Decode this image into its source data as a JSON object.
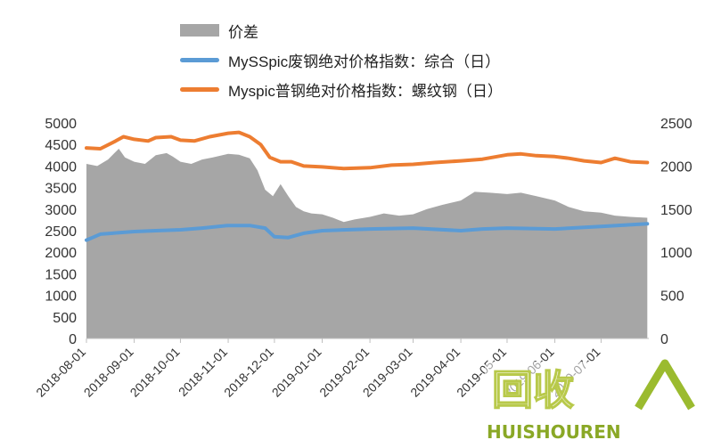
{
  "legend": {
    "area_label": "价差",
    "blue_label": "MySSpic废钢绝对价格指数：综合（日）",
    "orange_label": "Myspic普钢绝对价格指数：螺纹钢（日）"
  },
  "watermark": {
    "logo_text": "回收",
    "brand": "HUISHOUREN"
  },
  "chart_data": {
    "type": "line",
    "x_labels": [
      "2018-08-01",
      "2018-09-01",
      "2018-10-01",
      "2018-11-01",
      "2018-12-01",
      "2019-01-01",
      "2019-02-01",
      "2019-03-01",
      "2019-04-01",
      "2019-05-01",
      "2019-06-01",
      "2019-07-01"
    ],
    "left_axis": {
      "min": 0,
      "max": 5000,
      "ticks": [
        0,
        500,
        1000,
        1500,
        2000,
        2500,
        3000,
        3500,
        4000,
        4500,
        5000
      ]
    },
    "right_axis": {
      "min": 0,
      "max": 2500,
      "ticks": [
        0,
        500,
        1000,
        1500,
        2000,
        2500
      ]
    },
    "colors": {
      "area": "#a6a6a6",
      "blue": "#5b9bd5",
      "orange": "#ed7d31"
    },
    "series": [
      {
        "name": "价差",
        "type": "area",
        "axis": "left",
        "points": [
          [
            "2018-08-01",
            4050
          ],
          [
            "2018-08-08",
            4000
          ],
          [
            "2018-08-15",
            4150
          ],
          [
            "2018-08-22",
            4400
          ],
          [
            "2018-08-26",
            4200
          ],
          [
            "2018-09-01",
            4100
          ],
          [
            "2018-09-08",
            4050
          ],
          [
            "2018-09-15",
            4250
          ],
          [
            "2018-09-22",
            4300
          ],
          [
            "2018-09-26",
            4220
          ],
          [
            "2018-10-01",
            4100
          ],
          [
            "2018-10-08",
            4050
          ],
          [
            "2018-10-15",
            4150
          ],
          [
            "2018-10-22",
            4200
          ],
          [
            "2018-11-01",
            4280
          ],
          [
            "2018-11-08",
            4260
          ],
          [
            "2018-11-15",
            4180
          ],
          [
            "2018-11-20",
            3900
          ],
          [
            "2018-11-25",
            3450
          ],
          [
            "2018-11-30",
            3300
          ],
          [
            "2018-12-05",
            3580
          ],
          [
            "2018-12-10",
            3300
          ],
          [
            "2018-12-15",
            3050
          ],
          [
            "2018-12-20",
            2950
          ],
          [
            "2018-12-25",
            2900
          ],
          [
            "2019-01-01",
            2880
          ],
          [
            "2019-01-08",
            2800
          ],
          [
            "2019-01-15",
            2700
          ],
          [
            "2019-01-22",
            2760
          ],
          [
            "2019-02-01",
            2820
          ],
          [
            "2019-02-10",
            2900
          ],
          [
            "2019-02-20",
            2850
          ],
          [
            "2019-03-01",
            2880
          ],
          [
            "2019-03-10",
            3000
          ],
          [
            "2019-03-20",
            3100
          ],
          [
            "2019-04-01",
            3200
          ],
          [
            "2019-04-10",
            3400
          ],
          [
            "2019-04-20",
            3380
          ],
          [
            "2019-05-01",
            3350
          ],
          [
            "2019-05-10",
            3380
          ],
          [
            "2019-05-20",
            3300
          ],
          [
            "2019-06-01",
            3200
          ],
          [
            "2019-06-10",
            3050
          ],
          [
            "2019-06-20",
            2950
          ],
          [
            "2019-07-01",
            2920
          ],
          [
            "2019-07-10",
            2850
          ],
          [
            "2019-07-20",
            2820
          ],
          [
            "2019-07-31",
            2800
          ]
        ]
      },
      {
        "name": "MySSpic废钢绝对价格指数：综合（日）",
        "type": "line",
        "axis": "right",
        "points": [
          [
            "2018-08-01",
            1140
          ],
          [
            "2018-08-05",
            1170
          ],
          [
            "2018-08-10",
            1210
          ],
          [
            "2018-09-01",
            1240
          ],
          [
            "2018-09-15",
            1250
          ],
          [
            "2018-10-01",
            1260
          ],
          [
            "2018-10-15",
            1280
          ],
          [
            "2018-11-01",
            1310
          ],
          [
            "2018-11-15",
            1310
          ],
          [
            "2018-11-25",
            1280
          ],
          [
            "2018-12-01",
            1180
          ],
          [
            "2018-12-10",
            1170
          ],
          [
            "2018-12-20",
            1220
          ],
          [
            "2019-01-01",
            1250
          ],
          [
            "2019-02-01",
            1270
          ],
          [
            "2019-03-01",
            1280
          ],
          [
            "2019-04-01",
            1250
          ],
          [
            "2019-04-15",
            1270
          ],
          [
            "2019-05-01",
            1280
          ],
          [
            "2019-06-01",
            1270
          ],
          [
            "2019-07-01",
            1300
          ],
          [
            "2019-07-31",
            1330
          ]
        ]
      },
      {
        "name": "Myspic普钢绝对价格指数：螺纹钢（日）",
        "type": "line",
        "axis": "right",
        "points": [
          [
            "2018-08-01",
            2210
          ],
          [
            "2018-08-10",
            2200
          ],
          [
            "2018-08-20",
            2290
          ],
          [
            "2018-08-25",
            2340
          ],
          [
            "2018-09-01",
            2310
          ],
          [
            "2018-09-10",
            2290
          ],
          [
            "2018-09-15",
            2330
          ],
          [
            "2018-09-25",
            2340
          ],
          [
            "2018-10-01",
            2300
          ],
          [
            "2018-10-10",
            2290
          ],
          [
            "2018-10-20",
            2340
          ],
          [
            "2018-11-01",
            2380
          ],
          [
            "2018-11-08",
            2390
          ],
          [
            "2018-11-15",
            2340
          ],
          [
            "2018-11-22",
            2250
          ],
          [
            "2018-11-28",
            2100
          ],
          [
            "2018-12-05",
            2050
          ],
          [
            "2018-12-12",
            2050
          ],
          [
            "2018-12-20",
            2000
          ],
          [
            "2019-01-01",
            1990
          ],
          [
            "2019-01-15",
            1970
          ],
          [
            "2019-02-01",
            1980
          ],
          [
            "2019-02-15",
            2010
          ],
          [
            "2019-03-01",
            2020
          ],
          [
            "2019-03-15",
            2040
          ],
          [
            "2019-04-01",
            2060
          ],
          [
            "2019-04-15",
            2080
          ],
          [
            "2019-05-01",
            2130
          ],
          [
            "2019-05-10",
            2140
          ],
          [
            "2019-05-20",
            2120
          ],
          [
            "2019-06-01",
            2110
          ],
          [
            "2019-06-10",
            2090
          ],
          [
            "2019-06-20",
            2060
          ],
          [
            "2019-07-01",
            2040
          ],
          [
            "2019-07-10",
            2090
          ],
          [
            "2019-07-20",
            2050
          ],
          [
            "2019-07-31",
            2040
          ]
        ]
      }
    ]
  }
}
